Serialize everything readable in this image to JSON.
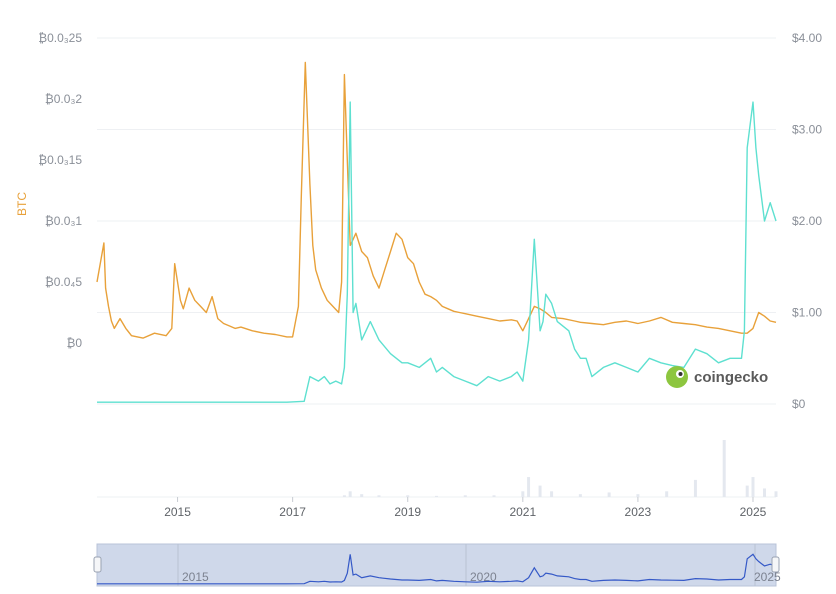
{
  "chart_data": {
    "type": "line",
    "left_axis": {
      "label": "BTC",
      "ticks": [
        "₿0.0₃25",
        "₿0.0₃2",
        "₿0.0₃15",
        "₿0.0₃1",
        "₿0.0₄5",
        "₿0"
      ],
      "tick_values": [
        0.00025,
        0.0002,
        0.00015,
        0.0001,
        5e-05,
        0
      ],
      "ylim": [
        -5e-05,
        0.00025
      ]
    },
    "right_axis": {
      "ticks": [
        "$4.00",
        "$3.00",
        "$2.00",
        "$1.00",
        "$0"
      ],
      "tick_values": [
        4,
        3,
        2,
        1,
        0
      ],
      "ylim": [
        0,
        4
      ]
    },
    "x_axis": {
      "ticks": [
        "2015",
        "2017",
        "2019",
        "2021",
        "2023",
        "2025"
      ],
      "tick_values": [
        2015,
        2017,
        2019,
        2021,
        2023,
        2025
      ],
      "xlim": [
        2013.6,
        2025.4
      ]
    },
    "series": [
      {
        "axis": "left",
        "color": "#e8a13a",
        "x": [
          2013.6,
          2013.72,
          2013.75,
          2013.8,
          2013.85,
          2013.9,
          2014.0,
          2014.1,
          2014.2,
          2014.4,
          2014.6,
          2014.8,
          2014.9,
          2014.95,
          2015.05,
          2015.1,
          2015.2,
          2015.3,
          2015.4,
          2015.5,
          2015.6,
          2015.7,
          2015.8,
          2015.9,
          2016.0,
          2016.1,
          2016.3,
          2016.5,
          2016.7,
          2016.9,
          2017.0,
          2017.1,
          2017.15,
          2017.22,
          2017.3,
          2017.35,
          2017.4,
          2017.5,
          2017.6,
          2017.7,
          2017.8,
          2017.85,
          2017.9,
          2018.0,
          2018.05,
          2018.1,
          2018.2,
          2018.3,
          2018.4,
          2018.5,
          2018.6,
          2018.7,
          2018.8,
          2018.9,
          2019.0,
          2019.1,
          2019.2,
          2019.3,
          2019.4,
          2019.5,
          2019.6,
          2019.7,
          2019.8,
          2019.9,
          2020.0,
          2020.2,
          2020.4,
          2020.6,
          2020.8,
          2020.9,
          2021.0,
          2021.1,
          2021.2,
          2021.3,
          2021.4,
          2021.5,
          2021.7,
          2021.9,
          2022.0,
          2022.2,
          2022.4,
          2022.6,
          2022.8,
          2023.0,
          2023.2,
          2023.4,
          2023.6,
          2023.8,
          2024.0,
          2024.2,
          2024.4,
          2024.6,
          2024.8,
          2024.9,
          2025.0,
          2025.1,
          2025.2,
          2025.3,
          2025.4
        ],
        "y": [
          5e-05,
          8.2e-05,
          4.5e-05,
          3e-05,
          1.8e-05,
          1.2e-05,
          2e-05,
          1.2e-05,
          6e-06,
          4e-06,
          8e-06,
          6e-06,
          1.2e-05,
          6.5e-05,
          3.5e-05,
          2.8e-05,
          4.5e-05,
          3.5e-05,
          3e-05,
          2.5e-05,
          3.8e-05,
          2e-05,
          1.6e-05,
          1.4e-05,
          1.2e-05,
          1.3e-05,
          1e-05,
          8e-06,
          7e-06,
          5e-06,
          5e-06,
          3e-05,
          0.00012,
          0.00023,
          0.00013,
          8e-05,
          6e-05,
          4.5e-05,
          3.5e-05,
          3e-05,
          2.5e-05,
          5e-05,
          0.00022,
          8e-05,
          8.5e-05,
          9e-05,
          7.5e-05,
          7e-05,
          5.5e-05,
          4.5e-05,
          6e-05,
          7.5e-05,
          9e-05,
          8.5e-05,
          7e-05,
          6.5e-05,
          5e-05,
          4e-05,
          3.8e-05,
          3.5e-05,
          3e-05,
          2.8e-05,
          2.6e-05,
          2.5e-05,
          2.4e-05,
          2.2e-05,
          2e-05,
          1.8e-05,
          1.9e-05,
          1.8e-05,
          1e-05,
          2e-05,
          3e-05,
          2.8e-05,
          2.5e-05,
          2.1e-05,
          2e-05,
          1.8e-05,
          1.7e-05,
          1.6e-05,
          1.5e-05,
          1.7e-05,
          1.8e-05,
          1.6e-05,
          1.8e-05,
          2.1e-05,
          1.7e-05,
          1.6e-05,
          1.5e-05,
          1.3e-05,
          1.2e-05,
          1e-05,
          8e-06,
          8e-06,
          1.2e-05,
          2.5e-05,
          2.2e-05,
          1.8e-05,
          1.7e-05
        ]
      },
      {
        "axis": "right",
        "color": "#5ee0d0",
        "x": [
          2013.6,
          2014.0,
          2014.5,
          2015.0,
          2015.5,
          2016.0,
          2016.5,
          2016.9,
          2017.2,
          2017.3,
          2017.45,
          2017.55,
          2017.65,
          2017.75,
          2017.85,
          2017.9,
          2017.95,
          2018.0,
          2018.05,
          2018.1,
          2018.2,
          2018.35,
          2018.5,
          2018.7,
          2018.9,
          2019.0,
          2019.2,
          2019.4,
          2019.5,
          2019.6,
          2019.8,
          2020.0,
          2020.2,
          2020.4,
          2020.6,
          2020.8,
          2020.9,
          2021.0,
          2021.1,
          2021.2,
          2021.3,
          2021.35,
          2021.4,
          2021.5,
          2021.6,
          2021.8,
          2021.9,
          2022.0,
          2022.1,
          2022.2,
          2022.4,
          2022.6,
          2022.8,
          2023.0,
          2023.2,
          2023.4,
          2023.6,
          2023.8,
          2024.0,
          2024.2,
          2024.4,
          2024.6,
          2024.8,
          2024.85,
          2024.9,
          2025.0,
          2025.05,
          2025.1,
          2025.2,
          2025.3,
          2025.4
        ],
        "y": [
          0.02,
          0.02,
          0.02,
          0.02,
          0.02,
          0.02,
          0.02,
          0.02,
          0.03,
          0.3,
          0.25,
          0.3,
          0.22,
          0.25,
          0.22,
          0.4,
          1.2,
          3.3,
          1.0,
          1.1,
          0.7,
          0.9,
          0.7,
          0.55,
          0.45,
          0.45,
          0.4,
          0.5,
          0.35,
          0.4,
          0.3,
          0.25,
          0.2,
          0.3,
          0.25,
          0.3,
          0.35,
          0.25,
          0.7,
          1.8,
          0.8,
          0.9,
          1.2,
          1.1,
          0.9,
          0.8,
          0.6,
          0.5,
          0.5,
          0.3,
          0.4,
          0.45,
          0.4,
          0.35,
          0.5,
          0.45,
          0.42,
          0.4,
          0.6,
          0.55,
          0.45,
          0.5,
          0.5,
          0.8,
          2.8,
          3.3,
          2.8,
          2.5,
          2.0,
          2.2,
          2.0
        ]
      }
    ],
    "volume": {
      "x": [
        2017.9,
        2018.0,
        2018.2,
        2018.5,
        2019.0,
        2019.5,
        2020.0,
        2020.5,
        2021.0,
        2021.1,
        2021.3,
        2021.5,
        2022.0,
        2022.5,
        2023.0,
        2023.5,
        2024.0,
        2024.5,
        2024.9,
        2025.0,
        2025.2,
        2025.4
      ],
      "y": [
        0.03,
        0.1,
        0.05,
        0.03,
        0.03,
        0.02,
        0.03,
        0.03,
        0.1,
        0.35,
        0.2,
        0.1,
        0.05,
        0.08,
        0.05,
        0.1,
        0.3,
        1.0,
        0.2,
        0.35,
        0.15,
        0.1
      ]
    },
    "navigator": {
      "labels": [
        "2015",
        "2020",
        "2025"
      ]
    }
  },
  "brand": {
    "name": "coingecko"
  }
}
